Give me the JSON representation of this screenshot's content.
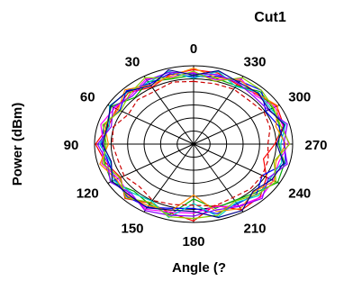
{
  "chart_data": {
    "type": "polar-line",
    "title": "Cut1",
    "xlabel": "Angle  (?",
    "ylabel": "Power  (dBm)",
    "angle_ticks": [
      "0",
      "30",
      "60",
      "90",
      "120",
      "150",
      "180",
      "210",
      "240",
      "270",
      "300",
      "330"
    ],
    "angle_tick_degrees": [
      0,
      30,
      60,
      90,
      120,
      150,
      180,
      210,
      240,
      270,
      300,
      330
    ],
    "angle_direction": "counterclockwise",
    "zero_direction": "top",
    "radial_rings": 6,
    "grid": true,
    "r_range": [
      0,
      1
    ],
    "angles": [
      0,
      15,
      30,
      45,
      60,
      75,
      90,
      105,
      120,
      135,
      150,
      165,
      180,
      195,
      210,
      225,
      240,
      255,
      270,
      285,
      300,
      315,
      330,
      345
    ],
    "series": [
      {
        "color": "#ff0000",
        "values": [
          0.95,
          0.92,
          0.84,
          0.93,
          0.9,
          0.89,
          0.99,
          0.92,
          0.85,
          0.98,
          0.87,
          0.91,
          0.98,
          0.81,
          0.97,
          0.95,
          0.85,
          0.73,
          0.82,
          0.94,
          0.97,
          0.9,
          0.88,
          0.94
        ]
      },
      {
        "color": "#00aa00",
        "values": [
          0.88,
          0.86,
          0.92,
          0.84,
          0.96,
          0.91,
          0.9,
          0.93,
          0.96,
          0.85,
          0.89,
          0.93,
          0.7,
          0.85,
          0.83,
          0.88,
          0.98,
          0.95,
          0.86,
          0.9,
          0.92,
          0.95,
          0.86,
          0.87
        ]
      },
      {
        "color": "#0000ff",
        "values": [
          0.86,
          0.93,
          0.89,
          0.96,
          0.86,
          0.94,
          0.93,
          0.89,
          0.91,
          0.95,
          0.93,
          0.85,
          0.82,
          0.92,
          0.88,
          0.9,
          0.8,
          0.96,
          0.92,
          0.89,
          0.84,
          0.97,
          0.93,
          0.9
        ]
      },
      {
        "color": "#ff00ff",
        "values": [
          0.92,
          0.88,
          0.96,
          0.89,
          0.92,
          0.97,
          0.91,
          0.96,
          0.88,
          0.91,
          0.96,
          0.9,
          0.88,
          0.83,
          0.91,
          0.96,
          0.93,
          0.89,
          0.96,
          0.93,
          0.95,
          0.88,
          0.96,
          0.85
        ]
      },
      {
        "color": "#00cccc",
        "values": [
          0.84,
          0.96,
          0.91,
          0.94,
          0.98,
          0.88,
          0.95,
          0.87,
          0.93,
          0.88,
          0.84,
          0.97,
          0.76,
          0.96,
          0.86,
          0.93,
          0.89,
          0.92,
          0.88,
          0.96,
          0.9,
          0.93,
          0.85,
          0.96
        ]
      },
      {
        "color": "#ff8800",
        "values": [
          0.97,
          0.9,
          0.87,
          0.98,
          0.88,
          0.93,
          0.86,
          0.98,
          0.9,
          0.94,
          0.91,
          0.88,
          0.65,
          0.89,
          0.95,
          0.86,
          0.94,
          0.86,
          0.93,
          0.86,
          0.98,
          0.91,
          0.94,
          0.88
        ]
      },
      {
        "color": "#8800ff",
        "values": [
          0.9,
          0.95,
          0.94,
          0.87,
          0.94,
          0.86,
          0.97,
          0.9,
          0.97,
          0.89,
          0.98,
          0.94,
          0.92,
          0.87,
          0.92,
          0.98,
          0.87,
          0.98,
          0.91,
          0.98,
          0.87,
          0.86,
          0.9,
          0.92
        ]
      },
      {
        "color": "#88cc00",
        "values": [
          0.93,
          0.87,
          0.98,
          0.91,
          0.85,
          0.95,
          0.88,
          0.95,
          0.86,
          0.97,
          0.86,
          0.96,
          0.95,
          0.94,
          0.84,
          0.91,
          0.96,
          0.84,
          0.97,
          0.91,
          0.93,
          0.97,
          0.98,
          0.83
        ]
      },
      {
        "color": "#000088",
        "values": [
          0.88,
          0.98,
          0.86,
          0.95,
          0.97,
          0.9,
          0.92,
          0.86,
          0.95,
          0.92,
          0.94,
          0.87,
          0.86,
          0.97,
          0.98,
          0.85,
          0.91,
          0.94,
          0.84,
          0.95,
          0.88,
          0.92,
          0.91,
          0.97
        ]
      },
      {
        "color": "#cc0000",
        "dashed": true,
        "values": [
          0.8,
          0.82,
          0.78,
          0.8,
          0.76,
          0.84,
          0.82,
          0.79,
          0.81,
          0.77,
          0.83,
          0.8,
          0.78,
          0.82,
          0.79,
          0.81,
          0.8,
          0.78,
          0.75,
          0.8,
          0.82,
          0.79,
          0.81,
          0.8
        ]
      }
    ]
  }
}
